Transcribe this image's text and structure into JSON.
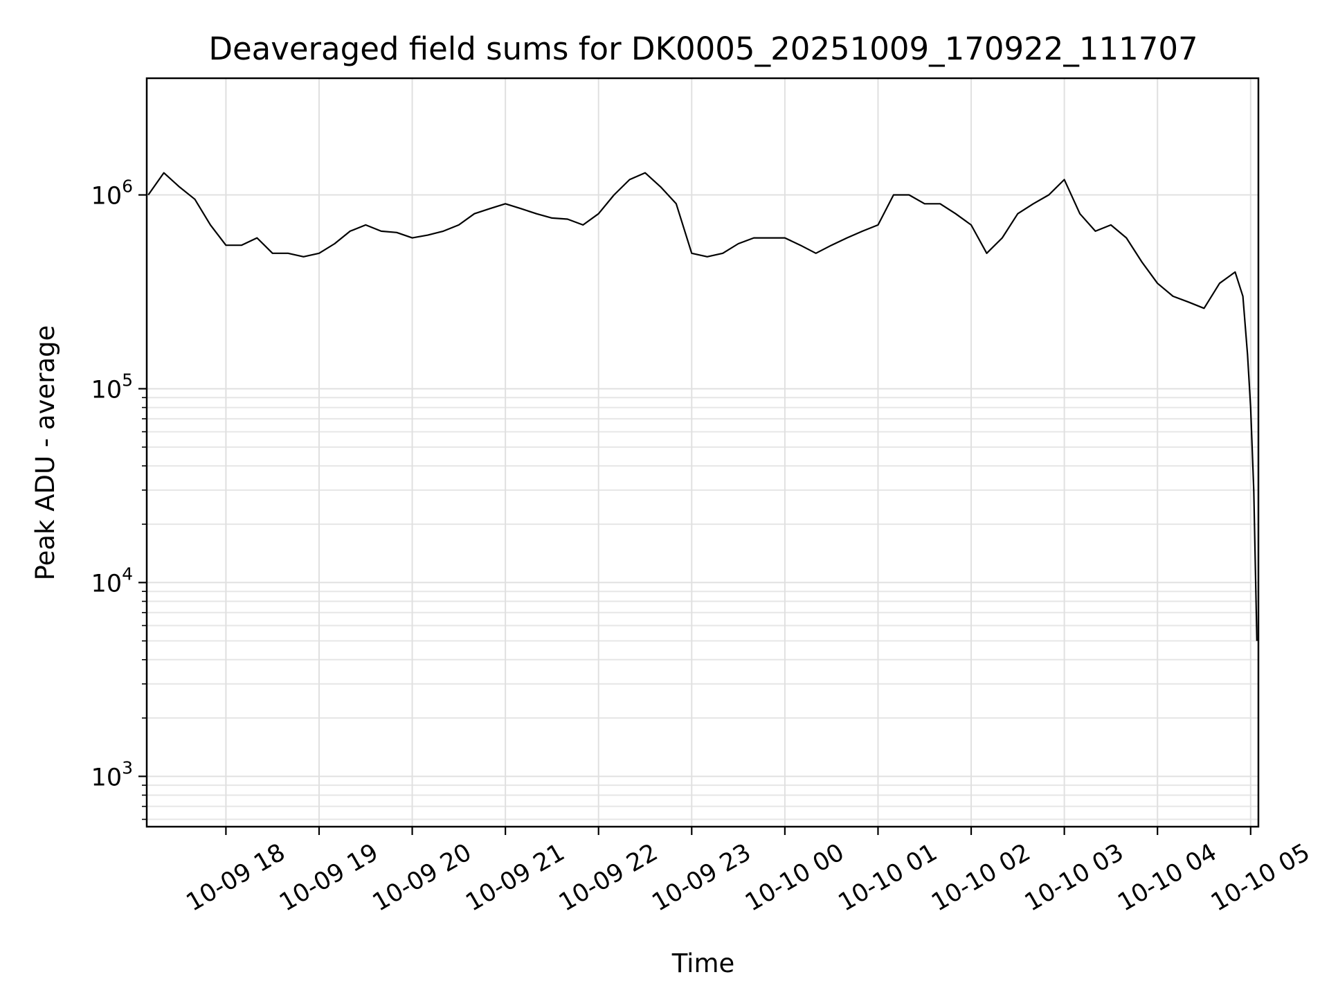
{
  "chart_data": {
    "type": "line",
    "title": "Deaveraged field sums for DK0005_20251009_170922_111707",
    "xlabel": "Time",
    "ylabel": "Peak ADU - average",
    "yscale": "log",
    "ylim": [
      550,
      4000000
    ],
    "xlim": [
      "2025-10-09 17:09",
      "2025-10-10 05:05"
    ],
    "grid": true,
    "line_color": "#000000",
    "x_ticks": [
      {
        "label": "10-09 18",
        "time": "2025-10-09 18:00"
      },
      {
        "label": "10-09 19",
        "time": "2025-10-09 19:00"
      },
      {
        "label": "10-09 20",
        "time": "2025-10-09 20:00"
      },
      {
        "label": "10-09 21",
        "time": "2025-10-09 21:00"
      },
      {
        "label": "10-09 22",
        "time": "2025-10-09 22:00"
      },
      {
        "label": "10-09 23",
        "time": "2025-10-09 23:00"
      },
      {
        "label": "10-10 00",
        "time": "2025-10-10 00:00"
      },
      {
        "label": "10-10 01",
        "time": "2025-10-10 01:00"
      },
      {
        "label": "10-10 02",
        "time": "2025-10-10 02:00"
      },
      {
        "label": "10-10 03",
        "time": "2025-10-10 03:00"
      },
      {
        "label": "10-10 04",
        "time": "2025-10-10 04:00"
      },
      {
        "label": "10-10 05",
        "time": "2025-10-10 05:00"
      }
    ],
    "y_ticks": [
      {
        "base": "10",
        "exp": "3",
        "value": 1000
      },
      {
        "base": "10",
        "exp": "4",
        "value": 10000
      },
      {
        "base": "10",
        "exp": "5",
        "value": 100000
      },
      {
        "base": "10",
        "exp": "6",
        "value": 1000000
      }
    ],
    "series": [
      {
        "x": [
          "2025-10-09 17:10",
          "2025-10-09 17:20",
          "2025-10-09 17:30",
          "2025-10-09 17:40",
          "2025-10-09 17:50",
          "2025-10-09 18:00",
          "2025-10-09 18:10",
          "2025-10-09 18:20",
          "2025-10-09 18:30",
          "2025-10-09 18:40",
          "2025-10-09 18:50",
          "2025-10-09 19:00",
          "2025-10-09 19:10",
          "2025-10-09 19:20",
          "2025-10-09 19:30",
          "2025-10-09 19:40",
          "2025-10-09 19:50",
          "2025-10-09 20:00",
          "2025-10-09 20:10",
          "2025-10-09 20:20",
          "2025-10-09 20:30",
          "2025-10-09 20:40",
          "2025-10-09 20:50",
          "2025-10-09 21:00",
          "2025-10-09 21:10",
          "2025-10-09 21:20",
          "2025-10-09 21:30",
          "2025-10-09 21:40",
          "2025-10-09 21:50",
          "2025-10-09 22:00",
          "2025-10-09 22:10",
          "2025-10-09 22:20",
          "2025-10-09 22:30",
          "2025-10-09 22:40",
          "2025-10-09 22:50",
          "2025-10-09 23:00",
          "2025-10-09 23:10",
          "2025-10-09 23:20",
          "2025-10-09 23:30",
          "2025-10-09 23:40",
          "2025-10-09 23:50",
          "2025-10-10 00:00",
          "2025-10-10 00:10",
          "2025-10-10 00:20",
          "2025-10-10 00:30",
          "2025-10-10 00:40",
          "2025-10-10 00:50",
          "2025-10-10 01:00",
          "2025-10-10 01:10",
          "2025-10-10 01:20",
          "2025-10-10 01:30",
          "2025-10-10 01:40",
          "2025-10-10 01:50",
          "2025-10-10 02:00",
          "2025-10-10 02:10",
          "2025-10-10 02:20",
          "2025-10-10 02:30",
          "2025-10-10 02:40",
          "2025-10-10 02:50",
          "2025-10-10 03:00",
          "2025-10-10 03:10",
          "2025-10-10 03:20",
          "2025-10-10 03:30",
          "2025-10-10 03:40",
          "2025-10-10 03:50",
          "2025-10-10 04:00",
          "2025-10-10 04:10",
          "2025-10-10 04:20",
          "2025-10-10 04:30",
          "2025-10-10 04:40",
          "2025-10-10 04:50",
          "2025-10-10 04:55",
          "2025-10-10 04:58",
          "2025-10-10 05:00",
          "2025-10-10 05:02",
          "2025-10-10 05:04"
        ],
        "y": [
          1000000,
          1300000,
          1100000,
          950000,
          700000,
          550000,
          550000,
          600000,
          500000,
          500000,
          480000,
          500000,
          560000,
          650000,
          700000,
          650000,
          640000,
          600000,
          620000,
          650000,
          700000,
          800000,
          850000,
          900000,
          850000,
          800000,
          760000,
          750000,
          700000,
          800000,
          1000000,
          1200000,
          1300000,
          1100000,
          900000,
          500000,
          480000,
          500000,
          560000,
          600000,
          600000,
          600000,
          550000,
          500000,
          550000,
          600000,
          650000,
          700000,
          1000000,
          1000000,
          900000,
          900000,
          800000,
          700000,
          500000,
          600000,
          800000,
          900000,
          1000000,
          1200000,
          800000,
          650000,
          700000,
          600000,
          450000,
          350000,
          300000,
          280000,
          260000,
          350000,
          400000,
          300000,
          150000,
          80000,
          30000,
          5000
        ]
      }
    ]
  }
}
